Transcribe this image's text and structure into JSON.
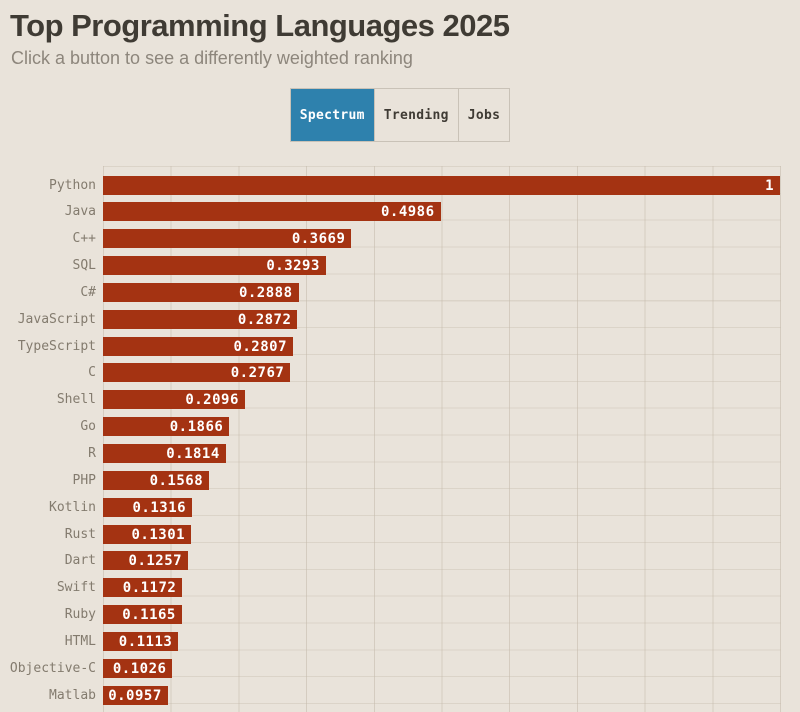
{
  "page": {
    "title": "Top Programming Languages 2025",
    "subtitle": "Click a button to see a differently weighted ranking"
  },
  "tabs": [
    {
      "label": "Spectrum",
      "active": true
    },
    {
      "label": "Trending",
      "active": false
    },
    {
      "label": "Jobs",
      "active": false
    }
  ],
  "colors": {
    "background": "#e9e3da",
    "bar": "#a43312",
    "active_tab": "#2e81ad",
    "title_text": "#3f3b34",
    "subtitle_text": "#8d867c",
    "axis_label_text": "#837b6e",
    "value_text": "#ffffff"
  },
  "chart_data": {
    "type": "bar",
    "orientation": "horizontal",
    "title": "Top Programming Languages 2025",
    "xlim": [
      0,
      1
    ],
    "grid": true,
    "gridline_x_interval": 0.1,
    "categories": [
      "Python",
      "Java",
      "C++",
      "SQL",
      "C#",
      "JavaScript",
      "TypeScript",
      "C",
      "Shell",
      "Go",
      "R",
      "PHP",
      "Kotlin",
      "Rust",
      "Dart",
      "Swift",
      "Ruby",
      "HTML",
      "Objective-C",
      "Matlab"
    ],
    "values": [
      1,
      0.4986,
      0.3669,
      0.3293,
      0.2888,
      0.2872,
      0.2807,
      0.2767,
      0.2096,
      0.1866,
      0.1814,
      0.1568,
      0.1316,
      0.1301,
      0.1257,
      0.1172,
      0.1165,
      0.1113,
      0.1026,
      0.0957
    ],
    "value_labels": [
      "1",
      "0.4986",
      "0.3669",
      "0.3293",
      "0.2888",
      "0.2872",
      "0.2807",
      "0.2767",
      "0.2096",
      "0.1866",
      "0.1814",
      "0.1568",
      "0.1316",
      "0.1301",
      "0.1257",
      "0.1172",
      "0.1165",
      "0.1113",
      "0.1026",
      "0.0957"
    ]
  }
}
